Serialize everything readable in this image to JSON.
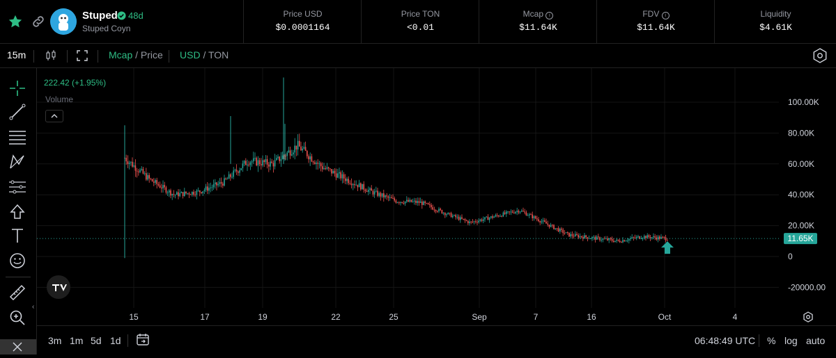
{
  "token": {
    "name": "Stuped",
    "age": "48d",
    "subtitle": "Stuped Coyn"
  },
  "stats": [
    {
      "label": "Price USD",
      "value": "$0.0001164"
    },
    {
      "label": "Price TON",
      "value": "<0.01"
    },
    {
      "label": "Mcap",
      "value": "$11.64K"
    },
    {
      "label": "FDV",
      "value": "$11.64K"
    },
    {
      "label": "Liquidity",
      "value": "$4.61K"
    }
  ],
  "toolbar": {
    "interval": "15m",
    "mode_active": "Mcap",
    "mode_sep": " / ",
    "mode_other": "Price",
    "currency_active": "USD",
    "currency_sep": " / ",
    "currency_other": "TON"
  },
  "legend": {
    "ohlc_change": "222.42 (+1.95%)",
    "volume": "Volume"
  },
  "price_tag": "11.65K",
  "bottom": {
    "ranges": [
      "3m",
      "1m",
      "5d",
      "1d"
    ],
    "clock": "06:48:49 UTC",
    "percent": "%",
    "log": "log",
    "auto": "auto"
  },
  "colors": {
    "up": "#26a69a",
    "down": "#ef5350",
    "accent": "#2ebd85",
    "price_tag": "#26a69a"
  },
  "icons": [
    "star-icon",
    "link-icon",
    "verified-icon",
    "info-icon",
    "candles-icon",
    "fullscreen-icon",
    "settings-icon",
    "crosshair-icon",
    "trendline-icon",
    "fib-icon",
    "pattern-icon",
    "ruler-icon",
    "arrow-up-icon",
    "text-icon",
    "emoji-icon",
    "measure-icon",
    "zoom-icon",
    "calendar-icon",
    "tradingview-logo",
    "buy-arrow-icon"
  ],
  "chart_data": {
    "type": "candlestick",
    "y_ticks": [
      "100.00K",
      "80.00K",
      "60.00K",
      "40.00K",
      "20.00K",
      "0",
      "-20000.00"
    ],
    "x_ticks": [
      "15",
      "17",
      "19",
      "22",
      "25",
      "Sep",
      "7",
      "16",
      "Oct",
      "4"
    ],
    "ylim": [
      -25000,
      115000
    ],
    "last_value": 11650,
    "series": [
      {
        "values": [
          {
            "x": "15",
            "y": 64000
          },
          {
            "x": "16",
            "y": 50000
          },
          {
            "x": "16.5",
            "y": 40000
          },
          {
            "x": "17",
            "y": 42000
          },
          {
            "x": "18",
            "y": 48000
          },
          {
            "x": "18.5",
            "y": 62000
          },
          {
            "x": "19",
            "y": 60000
          },
          {
            "x": "20",
            "y": 72000
          },
          {
            "x": "21",
            "y": 58000
          },
          {
            "x": "22",
            "y": 50000
          },
          {
            "x": "23",
            "y": 42000
          },
          {
            "x": "25",
            "y": 36000
          },
          {
            "x": "27",
            "y": 35000
          },
          {
            "x": "29",
            "y": 28000
          },
          {
            "x": "Sep",
            "y": 22000
          },
          {
            "x": "5",
            "y": 26000
          },
          {
            "x": "7",
            "y": 30000
          },
          {
            "x": "10",
            "y": 22000
          },
          {
            "x": "13",
            "y": 14000
          },
          {
            "x": "16",
            "y": 12000
          },
          {
            "x": "22",
            "y": 10000
          },
          {
            "x": "28",
            "y": 13000
          },
          {
            "x": "Oct",
            "y": 11650
          }
        ]
      }
    ]
  }
}
